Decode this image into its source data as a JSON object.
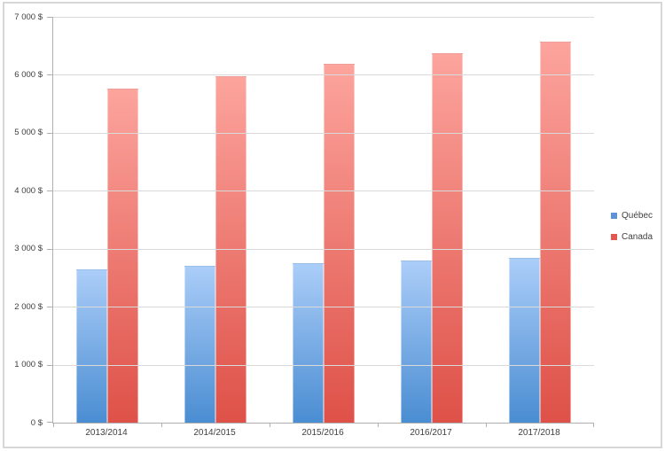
{
  "chart_data": {
    "type": "bar",
    "categories": [
      "2013/2014",
      "2014/2015",
      "2015/2016",
      "2016/2017",
      "2017/2018"
    ],
    "series": [
      {
        "name": "Québec",
        "values": [
          2650,
          2705,
          2755,
          2795,
          2850
        ],
        "gradient_top": "#ABCDF8",
        "gradient_bottom": "#4A8DD2",
        "legend_color": "#5C93D8"
      },
      {
        "name": "Canada",
        "values": [
          5765,
          5980,
          6190,
          6375,
          6570
        ],
        "gradient_top": "#FCA49D",
        "gradient_bottom": "#DE5148",
        "legend_color": "#E2574E"
      }
    ],
    "y_axis": {
      "min": 0,
      "max": 7000,
      "tick_values": [
        0,
        1000,
        2000,
        3000,
        4000,
        5000,
        6000,
        7000
      ],
      "tick_labels": [
        "0 $",
        "1 000 $",
        "2 000 $",
        "3 000 $",
        "4 000 $",
        "5 000 $",
        "6 000 $",
        "7 000 $"
      ]
    },
    "grid": true,
    "legend_position": "right",
    "xlabel": "",
    "ylabel": "",
    "title": ""
  },
  "colors": {
    "gridline": "#DADADA",
    "axis": "#B0B0B0",
    "text": "#404040",
    "frame_border": "#D7D7D7",
    "background": "#FFFFFF"
  }
}
